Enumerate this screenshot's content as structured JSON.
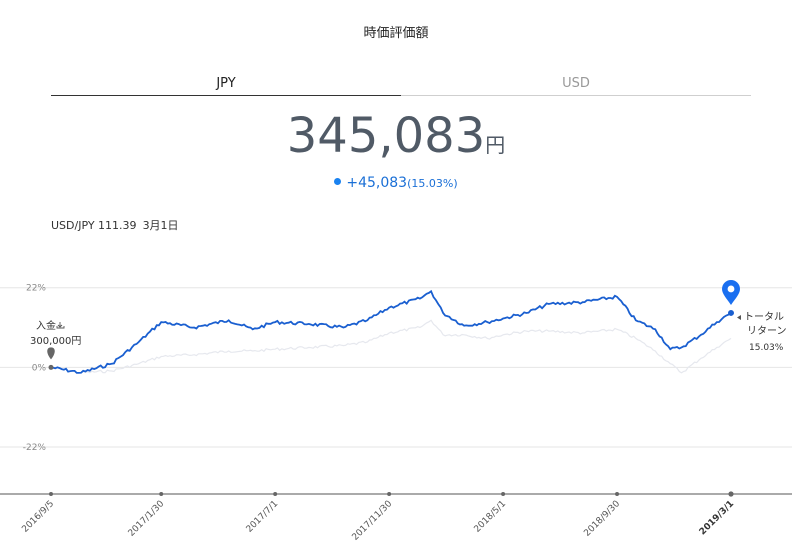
{
  "header": {
    "title": "時価評価額"
  },
  "tabs": [
    {
      "label": "JPY",
      "active": true
    },
    {
      "label": "USD",
      "active": false
    }
  ],
  "valuation": {
    "amount": "345,083",
    "unit": "円",
    "change": "+45,083",
    "change_pct": "(15.03%)"
  },
  "fx": {
    "pair_rate": "USD/JPY 111.39",
    "date": "3月1日"
  },
  "colors": {
    "series_main": "#1a5fd0",
    "series_compare": "#e6e8ee",
    "accent": "#1a82f0"
  },
  "chart_data": {
    "type": "line",
    "y_tick_labels": [
      "22%",
      "0%",
      "-22%"
    ],
    "y_ticks": [
      22,
      0,
      -22
    ],
    "ylim": [
      -35,
      28
    ],
    "x_tick_labels": [
      "2016/9/5",
      "2017/1/30",
      "2017/7/1",
      "2017/11/30",
      "2018/5/1",
      "2018/9/30",
      "2019/3/1"
    ],
    "x": [
      "2016/9/5",
      "2016/10/15",
      "2016/11/25",
      "2016/12/31",
      "2017/1/30",
      "2017/3/15",
      "2017/4/30",
      "2017/6/1",
      "2017/7/1",
      "2017/8/15",
      "2017/9/30",
      "2017/11/1",
      "2017/11/30",
      "2018/1/10",
      "2018/1/25",
      "2018/2/10",
      "2018/3/10",
      "2018/4/10",
      "2018/5/1",
      "2018/6/1",
      "2018/7/1",
      "2018/8/15",
      "2018/9/30",
      "2018/10/25",
      "2018/11/20",
      "2018/12/10",
      "2018/12/25",
      "2019/1/20",
      "2019/2/10",
      "2019/3/1"
    ],
    "series": [
      {
        "name": "",
        "values": [
          0,
          -1.5,
          1,
          7,
          12.5,
          11,
          13,
          10.5,
          12.5,
          12,
          11,
          13,
          16.5,
          19,
          21,
          15,
          11.5,
          12.5,
          13.5,
          15,
          17.5,
          18,
          19.5,
          13,
          10.5,
          5,
          5.5,
          9,
          12.5,
          15.03
        ]
      },
      {
        "name": "",
        "values": [
          0,
          -1.5,
          -1,
          1,
          3,
          3.5,
          4.5,
          4.5,
          5,
          5.5,
          6,
          7,
          9.5,
          11,
          13,
          9,
          9,
          8,
          9,
          10,
          10,
          9.5,
          10.5,
          8,
          4.5,
          1,
          -1.5,
          2.5,
          5.5,
          8
        ]
      }
    ],
    "annotations": {
      "deposit_label": "入金",
      "deposit_amount": "300,000円",
      "total_return_line1": "トータル",
      "total_return_line2": "リターン",
      "total_return_value": "15.03%"
    }
  }
}
